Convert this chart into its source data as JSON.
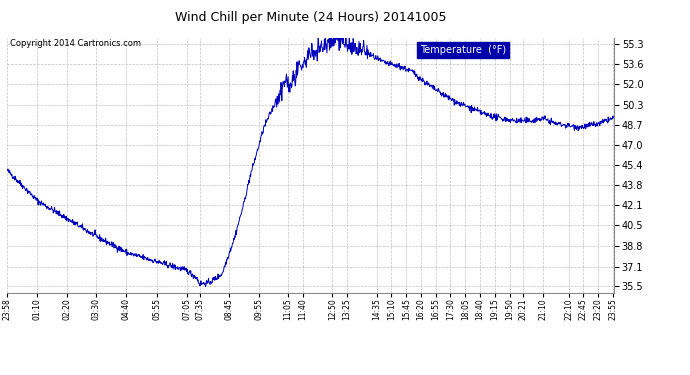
{
  "title": "Wind Chill per Minute (24 Hours) 20141005",
  "copyright": "Copyright 2014 Cartronics.com",
  "legend_label": "Temperature  (°F)",
  "line_color": "#0000bb",
  "bg_color": "#ffffff",
  "plot_bg_color": "#ffffff",
  "grid_color": "#bbbbbb",
  "yticks": [
    35.5,
    37.1,
    38.8,
    40.5,
    42.1,
    43.8,
    45.4,
    47.0,
    48.7,
    50.3,
    52.0,
    53.6,
    55.3
  ],
  "ylim": [
    35.0,
    55.8
  ],
  "xtick_labels": [
    "23:58",
    "01:10",
    "02:20",
    "03:30",
    "04:40",
    "05:55",
    "07:05",
    "07:35",
    "08:45",
    "09:55",
    "11:05",
    "11:40",
    "12:50",
    "13:25",
    "14:35",
    "15:10",
    "15:45",
    "16:20",
    "16:55",
    "17:30",
    "18:05",
    "18:40",
    "19:15",
    "19:50",
    "20:21",
    "21:10",
    "22:10",
    "22:45",
    "23:20",
    "23:55"
  ],
  "keypoints": [
    [
      0,
      45.0
    ],
    [
      72,
      42.5
    ],
    [
      144,
      41.0
    ],
    [
      216,
      39.5
    ],
    [
      288,
      38.2
    ],
    [
      357,
      37.5
    ],
    [
      427,
      36.8
    ],
    [
      450,
      36.2
    ],
    [
      457,
      35.7
    ],
    [
      480,
      35.8
    ],
    [
      510,
      36.5
    ],
    [
      540,
      39.5
    ],
    [
      560,
      42.0
    ],
    [
      577,
      44.5
    ],
    [
      610,
      48.5
    ],
    [
      637,
      50.5
    ],
    [
      650,
      51.0
    ],
    [
      660,
      52.5
    ],
    [
      670,
      51.8
    ],
    [
      682,
      52.5
    ],
    [
      700,
      53.5
    ],
    [
      720,
      54.5
    ],
    [
      742,
      55.0
    ],
    [
      770,
      55.5
    ],
    [
      790,
      55.8
    ],
    [
      810,
      55.0
    ],
    [
      830,
      54.8
    ],
    [
      857,
      54.5
    ],
    [
      880,
      54.0
    ],
    [
      892,
      53.8
    ],
    [
      920,
      53.5
    ],
    [
      927,
      53.5
    ],
    [
      962,
      53.0
    ],
    [
      997,
      52.0
    ],
    [
      1032,
      51.2
    ],
    [
      1067,
      50.5
    ],
    [
      1102,
      50.0
    ],
    [
      1137,
      49.5
    ],
    [
      1172,
      49.2
    ],
    [
      1206,
      49.0
    ],
    [
      1240,
      49.0
    ],
    [
      1272,
      49.2
    ],
    [
      1300,
      48.8
    ],
    [
      1332,
      48.6
    ],
    [
      1355,
      48.5
    ],
    [
      1367,
      48.5
    ],
    [
      1390,
      48.7
    ],
    [
      1402,
      48.7
    ],
    [
      1420,
      49.0
    ],
    [
      1437,
      49.2
    ]
  ]
}
